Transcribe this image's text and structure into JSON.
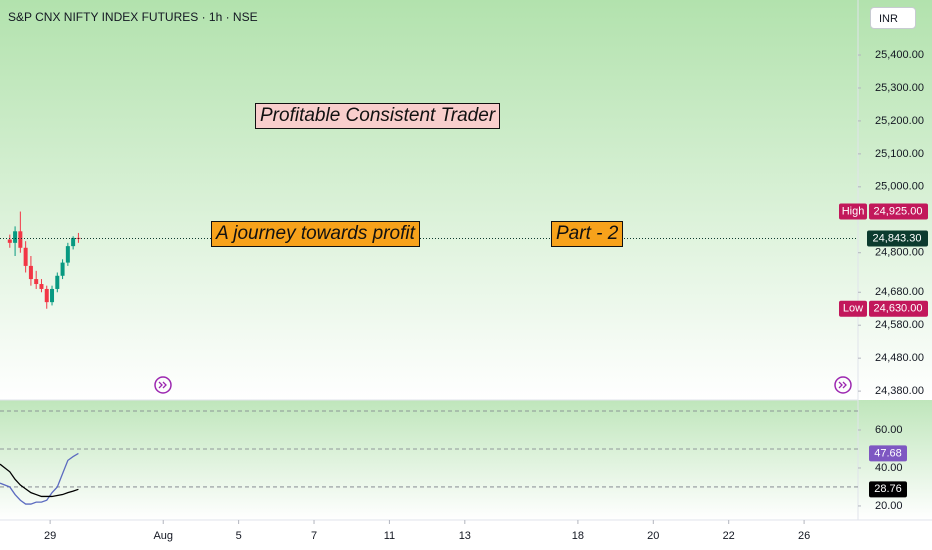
{
  "header": {
    "title": "S&P CNX NIFTY INDEX FUTURES · 1h · NSE",
    "currency": "INR"
  },
  "annotations": [
    {
      "text": "Profitable Consistent Trader",
      "color": "#f8cecc"
    },
    {
      "text": "A journey towards profit",
      "color": "#f7a21b"
    },
    {
      "text": "Part - 2",
      "color": "#f7a21b"
    }
  ],
  "chart_data": [
    {
      "type": "candlestick",
      "x": [
        -1.07,
        -0.93,
        -0.79,
        -0.65,
        -0.51,
        -0.37,
        -0.23,
        -0.09,
        0.05,
        0.19,
        0.33,
        0.47,
        0.61,
        0.75
      ],
      "open": [
        24840,
        24830,
        24865,
        24815,
        24760,
        24720,
        24705,
        24690,
        24650,
        24690,
        24730,
        24770,
        24820,
        24845
      ],
      "high": [
        24855,
        24880,
        24925,
        24835,
        24790,
        24745,
        24720,
        24700,
        24700,
        24740,
        24780,
        24830,
        24850,
        24860
      ],
      "low": [
        24815,
        24790,
        24800,
        24740,
        24700,
        24690,
        24680,
        24630,
        24640,
        24680,
        24720,
        24760,
        24810,
        24830
      ],
      "close": [
        24830,
        24865,
        24815,
        24760,
        24720,
        24705,
        24690,
        24650,
        24690,
        24730,
        24770,
        24820,
        24845,
        24843.3
      ],
      "last_close_label": "24,843.30",
      "up_color": "#089981",
      "down_color": "#f23645",
      "xlim": [
        -1.33,
        21.43
      ],
      "xticks": [
        {
          "value": 0,
          "label": "29"
        },
        {
          "value": 3,
          "label": "Aug"
        },
        {
          "value": 5,
          "label": "5"
        },
        {
          "value": 7,
          "label": "7"
        },
        {
          "value": 9,
          "label": "11"
        },
        {
          "value": 11,
          "label": "13"
        },
        {
          "value": 14,
          "label": "18"
        },
        {
          "value": 16,
          "label": "20"
        },
        {
          "value": 18,
          "label": "22"
        },
        {
          "value": 20,
          "label": "26"
        }
      ],
      "ylim": [
        24353,
        25567
      ],
      "yticks": [
        {
          "value": 25400,
          "label": "25,400.00"
        },
        {
          "value": 25300,
          "label": "25,300.00"
        },
        {
          "value": 25200,
          "label": "25,200.00"
        },
        {
          "value": 25100,
          "label": "25,100.00"
        },
        {
          "value": 25000,
          "label": "25,000.00"
        },
        {
          "value": 24800,
          "label": "24,800.00"
        },
        {
          "value": 24680,
          "label": "24,680.00"
        },
        {
          "value": 24580,
          "label": "24,580.00"
        },
        {
          "value": 24480,
          "label": "24,480.00"
        },
        {
          "value": 24380,
          "label": "24,380.00"
        }
      ],
      "price_tags": [
        {
          "name": "High",
          "value": 24925,
          "label": "24,925.00",
          "color": "#c2185b"
        },
        {
          "name": "Low",
          "value": 24630,
          "label": "24,630.00",
          "color": "#c2185b"
        }
      ]
    },
    {
      "type": "line",
      "x": [
        -1.33,
        -1.07,
        -0.93,
        -0.79,
        -0.65,
        -0.51,
        -0.37,
        -0.23,
        -0.09,
        0.05,
        0.19,
        0.33,
        0.47,
        0.61,
        0.75
      ],
      "series": [
        {
          "color": "#5c6bc0",
          "values": [
            32,
            30,
            26,
            23,
            21,
            21,
            22,
            22,
            23,
            27,
            30,
            37,
            44,
            46,
            47.68
          ],
          "tag_color": "#7e57c2"
        },
        {
          "color": "#000000",
          "values": [
            42,
            38,
            34,
            31,
            29,
            27,
            26,
            25,
            25,
            25,
            25.5,
            26,
            27,
            27.8,
            28.76
          ],
          "tag_color": "#000000"
        }
      ],
      "bands": [
        70,
        50,
        30
      ],
      "ylim": [
        12.6,
        75.8
      ],
      "yticks": [
        {
          "value": 60,
          "label": "60.00"
        },
        {
          "value": 40,
          "label": "40.00"
        },
        {
          "value": 20,
          "label": "20.00"
        }
      ]
    }
  ]
}
